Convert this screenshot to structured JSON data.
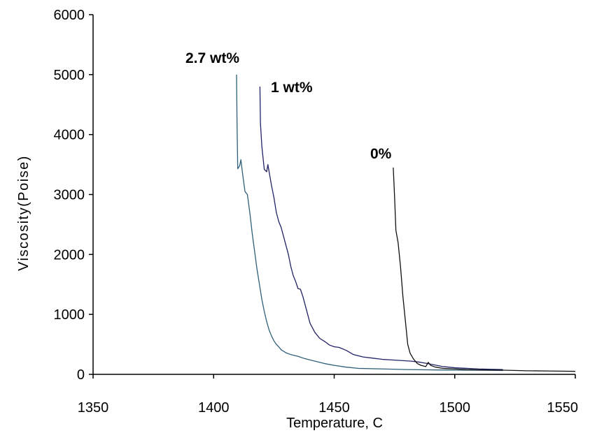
{
  "chart_data": {
    "type": "line",
    "title": "",
    "xlabel": "Temperature, C",
    "ylabel": "Viscosity(Poise)",
    "xlim": [
      1350,
      1550
    ],
    "ylim": [
      0,
      6000
    ],
    "x_ticks": [
      "1350",
      "1400",
      "1450",
      "1500",
      "1550"
    ],
    "y_ticks": [
      "0",
      "1000",
      "2000",
      "3000",
      "4000",
      "5000",
      "6000"
    ],
    "grid": false,
    "legend": "none",
    "series": [
      {
        "name": "2.7 wt%",
        "color": "#2f5f7a",
        "points": [
          [
            1409.5,
            5000
          ],
          [
            1409.7,
            4200
          ],
          [
            1410,
            3430
          ],
          [
            1410.8,
            3480
          ],
          [
            1411.3,
            3580
          ],
          [
            1412,
            3350
          ],
          [
            1413,
            3050
          ],
          [
            1414,
            3000
          ],
          [
            1415,
            2700
          ],
          [
            1416,
            2350
          ],
          [
            1417,
            2050
          ],
          [
            1418,
            1750
          ],
          [
            1419,
            1500
          ],
          [
            1420,
            1250
          ],
          [
            1421,
            1050
          ],
          [
            1422,
            880
          ],
          [
            1423,
            740
          ],
          [
            1424,
            640
          ],
          [
            1425,
            560
          ],
          [
            1426,
            500
          ],
          [
            1427,
            460
          ],
          [
            1428,
            410
          ],
          [
            1430,
            360
          ],
          [
            1432,
            330
          ],
          [
            1435,
            300
          ],
          [
            1438,
            260
          ],
          [
            1442,
            220
          ],
          [
            1446,
            180
          ],
          [
            1450,
            150
          ],
          [
            1455,
            120
          ],
          [
            1460,
            100
          ],
          [
            1470,
            90
          ],
          [
            1480,
            80
          ],
          [
            1490,
            75
          ],
          [
            1500,
            70
          ],
          [
            1510,
            68
          ],
          [
            1520,
            65
          ]
        ]
      },
      {
        "name": "1 wt%",
        "color": "#222266",
        "points": [
          [
            1419.2,
            4800
          ],
          [
            1419.4,
            4200
          ],
          [
            1420,
            3800
          ],
          [
            1421,
            3420
          ],
          [
            1422,
            3380
          ],
          [
            1422.5,
            3500
          ],
          [
            1423,
            3380
          ],
          [
            1424,
            3150
          ],
          [
            1425,
            2950
          ],
          [
            1426,
            2700
          ],
          [
            1427,
            2550
          ],
          [
            1428,
            2450
          ],
          [
            1429,
            2300
          ],
          [
            1430,
            2150
          ],
          [
            1431,
            2000
          ],
          [
            1432,
            1800
          ],
          [
            1433,
            1650
          ],
          [
            1434,
            1550
          ],
          [
            1435,
            1430
          ],
          [
            1436,
            1420
          ],
          [
            1437,
            1300
          ],
          [
            1438,
            1150
          ],
          [
            1439,
            1000
          ],
          [
            1440,
            850
          ],
          [
            1442,
            700
          ],
          [
            1444,
            600
          ],
          [
            1446,
            550
          ],
          [
            1448,
            490
          ],
          [
            1450,
            460
          ],
          [
            1452,
            450
          ],
          [
            1455,
            400
          ],
          [
            1458,
            330
          ],
          [
            1462,
            290
          ],
          [
            1466,
            270
          ],
          [
            1470,
            250
          ],
          [
            1474,
            240
          ],
          [
            1478,
            230
          ],
          [
            1482,
            220
          ],
          [
            1486,
            200
          ],
          [
            1490,
            170
          ],
          [
            1495,
            130
          ],
          [
            1500,
            110
          ],
          [
            1505,
            100
          ],
          [
            1510,
            90
          ],
          [
            1520,
            80
          ]
        ]
      },
      {
        "name": "0%",
        "color": "#111111",
        "points": [
          [
            1474.5,
            3450
          ],
          [
            1475,
            3000
          ],
          [
            1475.6,
            2400
          ],
          [
            1476.5,
            2200
          ],
          [
            1477.5,
            1800
          ],
          [
            1478.5,
            1300
          ],
          [
            1479.5,
            900
          ],
          [
            1480.5,
            500
          ],
          [
            1481.5,
            350
          ],
          [
            1483,
            250
          ],
          [
            1484.5,
            180
          ],
          [
            1486,
            150
          ],
          [
            1488,
            130
          ],
          [
            1489,
            200
          ],
          [
            1490,
            150
          ],
          [
            1492,
            120
          ],
          [
            1495,
            100
          ],
          [
            1500,
            90
          ],
          [
            1505,
            80
          ],
          [
            1510,
            75
          ],
          [
            1520,
            70
          ],
          [
            1530,
            60
          ],
          [
            1540,
            55
          ],
          [
            1550,
            50
          ]
        ]
      }
    ]
  },
  "annotations": {
    "label_27": "2.7 wt%",
    "label_1": "1 wt%",
    "label_0": "0%"
  }
}
